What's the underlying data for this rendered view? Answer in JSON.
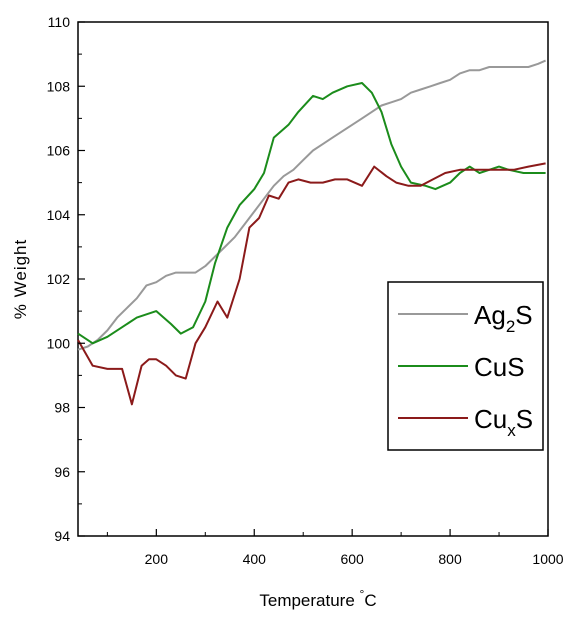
{
  "chart_data": {
    "type": "line",
    "xlabel": "Temperature °C",
    "ylabel": "% Weight",
    "xlim": [
      40,
      1000
    ],
    "ylim": [
      94,
      110
    ],
    "xticks": [
      200,
      400,
      600,
      800,
      1000
    ],
    "yticks": [
      94,
      96,
      98,
      100,
      102,
      104,
      106,
      108,
      110
    ],
    "grid": false,
    "legend_position": "middle-right",
    "series": [
      {
        "name": "Ag2S",
        "legend_base": "Ag",
        "legend_sub": "2",
        "legend_tail": "S",
        "color": "#999999",
        "x": [
          40,
          60,
          80,
          100,
          120,
          140,
          160,
          180,
          200,
          220,
          240,
          260,
          280,
          300,
          320,
          340,
          360,
          380,
          400,
          420,
          440,
          460,
          480,
          500,
          520,
          540,
          560,
          580,
          600,
          620,
          640,
          660,
          680,
          700,
          720,
          740,
          760,
          780,
          800,
          820,
          840,
          860,
          880,
          900,
          920,
          940,
          960,
          980,
          995
        ],
        "values": [
          99.8,
          99.9,
          100.1,
          100.4,
          100.8,
          101.1,
          101.4,
          101.8,
          101.9,
          102.1,
          102.2,
          102.2,
          102.2,
          102.4,
          102.7,
          103.0,
          103.3,
          103.7,
          104.1,
          104.5,
          104.9,
          105.2,
          105.4,
          105.7,
          106.0,
          106.2,
          106.4,
          106.6,
          106.8,
          107.0,
          107.2,
          107.4,
          107.5,
          107.6,
          107.8,
          107.9,
          108.0,
          108.1,
          108.2,
          108.4,
          108.5,
          108.5,
          108.6,
          108.6,
          108.6,
          108.6,
          108.6,
          108.7,
          108.8
        ]
      },
      {
        "name": "CuS",
        "legend_base": "CuS",
        "legend_sub": "",
        "legend_tail": "",
        "color": "#1b8c1b",
        "x": [
          40,
          70,
          100,
          130,
          160,
          200,
          230,
          250,
          275,
          300,
          320,
          345,
          370,
          400,
          420,
          440,
          470,
          490,
          520,
          540,
          560,
          590,
          620,
          640,
          660,
          680,
          700,
          720,
          750,
          770,
          800,
          820,
          840,
          860,
          880,
          900,
          920,
          950,
          970,
          995
        ],
        "values": [
          100.3,
          100.0,
          100.2,
          100.5,
          100.8,
          101.0,
          100.6,
          100.3,
          100.5,
          101.3,
          102.5,
          103.6,
          104.3,
          104.8,
          105.3,
          106.4,
          106.8,
          107.2,
          107.7,
          107.6,
          107.8,
          108.0,
          108.1,
          107.8,
          107.2,
          106.2,
          105.5,
          105.0,
          104.9,
          104.8,
          105.0,
          105.3,
          105.5,
          105.3,
          105.4,
          105.5,
          105.4,
          105.3,
          105.3,
          105.3
        ]
      },
      {
        "name": "CuxS",
        "legend_base": "Cu",
        "legend_sub": "x",
        "legend_tail": "S",
        "color": "#8b1a1a",
        "x": [
          40,
          70,
          100,
          130,
          150,
          170,
          185,
          200,
          220,
          240,
          260,
          280,
          300,
          325,
          345,
          370,
          390,
          410,
          430,
          450,
          470,
          490,
          515,
          540,
          565,
          590,
          620,
          645,
          670,
          690,
          715,
          740,
          765,
          790,
          820,
          845,
          870,
          900,
          930,
          960,
          995
        ],
        "values": [
          100.1,
          99.3,
          99.2,
          99.2,
          98.1,
          99.3,
          99.5,
          99.5,
          99.3,
          99.0,
          98.9,
          100.0,
          100.5,
          101.3,
          100.8,
          102.0,
          103.6,
          103.9,
          104.6,
          104.5,
          105.0,
          105.1,
          105.0,
          105.0,
          105.1,
          105.1,
          104.9,
          105.5,
          105.2,
          105.0,
          104.9,
          104.9,
          105.1,
          105.3,
          105.4,
          105.4,
          105.4,
          105.4,
          105.4,
          105.5,
          105.6
        ]
      }
    ]
  }
}
